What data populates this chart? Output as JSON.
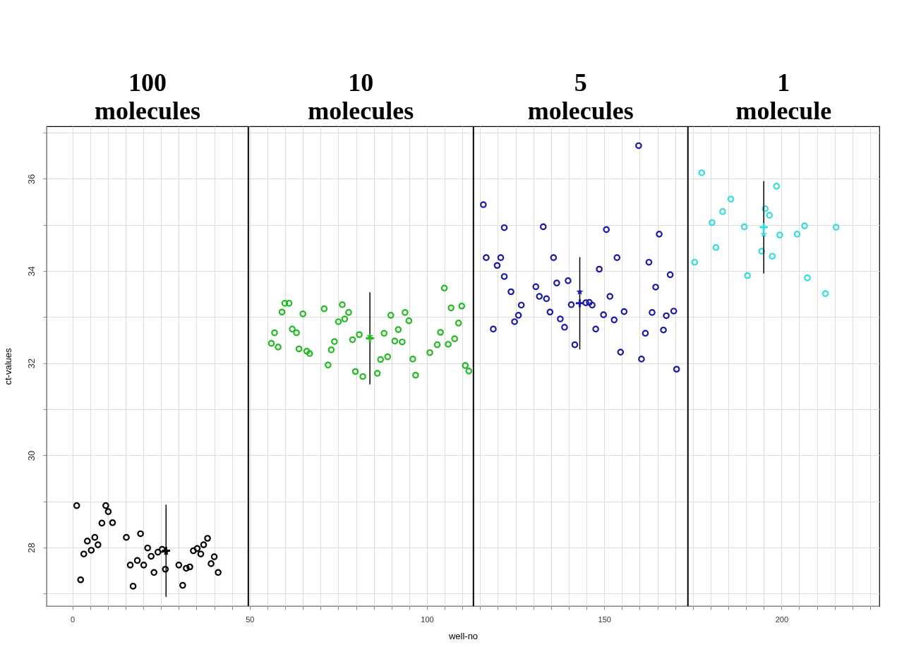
{
  "chart_data": {
    "type": "scatter",
    "xlabel": "well-no",
    "ylabel": "ct-values",
    "marker": "circle",
    "grid": true,
    "xlim": [
      -7.3,
      227.6
    ],
    "ylim": [
      26.73,
      37.14
    ],
    "xticks": [
      0,
      {
        "value": 5,
        "label": null
      },
      {
        "value": 10,
        "label": null
      },
      {
        "value": 15,
        "label": null
      },
      {
        "value": 20,
        "label": null
      },
      {
        "value": 25,
        "label": null
      },
      {
        "value": 30,
        "label": null
      },
      {
        "value": 35,
        "label": null
      },
      {
        "value": 40,
        "label": null
      },
      {
        "value": 45,
        "label": null
      },
      50,
      {
        "value": 55,
        "label": null
      },
      {
        "value": 60,
        "label": null
      },
      {
        "value": 65,
        "label": null
      },
      {
        "value": 70,
        "label": null
      },
      {
        "value": 75,
        "label": null
      },
      {
        "value": 80,
        "label": null
      },
      {
        "value": 85,
        "label": null
      },
      {
        "value": 90,
        "label": null
      },
      {
        "value": 95,
        "label": null
      },
      100,
      {
        "value": 105,
        "label": null
      },
      {
        "value": 110,
        "label": null
      },
      {
        "value": 115,
        "label": null
      },
      {
        "value": 120,
        "label": null
      },
      {
        "value": 125,
        "label": null
      },
      {
        "value": 130,
        "label": null
      },
      {
        "value": 135,
        "label": null
      },
      {
        "value": 140,
        "label": null
      },
      {
        "value": 145,
        "label": null
      },
      150,
      {
        "value": 155,
        "label": null
      },
      {
        "value": 160,
        "label": null
      },
      {
        "value": 165,
        "label": null
      },
      {
        "value": 170,
        "label": null
      },
      {
        "value": 175,
        "label": null
      },
      {
        "value": 180,
        "label": null
      },
      {
        "value": 185,
        "label": null
      },
      {
        "value": 190,
        "label": null
      },
      {
        "value": 195,
        "label": null
      },
      200,
      {
        "value": 205,
        "label": null
      },
      {
        "value": 210,
        "label": null
      },
      {
        "value": 215,
        "label": null
      },
      {
        "value": 220,
        "label": null
      },
      {
        "value": 225,
        "label": null
      }
    ],
    "yticks": [
      {
        "value": 27,
        "label": null
      },
      28,
      {
        "value": 29,
        "label": null
      },
      30,
      {
        "value": 31,
        "label": null
      },
      32,
      {
        "value": 33,
        "label": null
      },
      34,
      {
        "value": 35,
        "label": null
      },
      36,
      {
        "value": 37,
        "label": null
      }
    ],
    "annotations": [
      "100 molecules",
      "10 molecules",
      "5 molecules",
      "1 molecule"
    ],
    "ref_lines": [
      {
        "axis": "x",
        "value": 49.6,
        "color": "#000000"
      },
      {
        "axis": "x",
        "value": 113.1,
        "color": "#000000"
      },
      {
        "axis": "x",
        "value": 173.6,
        "color": "#000000"
      }
    ],
    "series": [
      {
        "color": "#000000",
        "x": [
          1.2,
          9.4,
          10.1,
          8.3,
          11.3,
          6.3,
          4.2,
          7.2,
          5.3,
          3.2,
          2.3,
          15.2,
          19.2,
          21.2,
          22.2,
          18.3,
          16.3,
          20.1,
          23.0,
          17.1,
          24.1,
          25.3,
          26.2,
          30.0,
          32.1,
          33.1,
          31.1,
          34.1,
          35.2,
          36.2,
          37.0,
          38.1,
          40.0,
          39.1,
          41.1
        ],
        "values": [
          28.91,
          28.91,
          28.78,
          28.53,
          28.54,
          28.22,
          28.14,
          28.06,
          27.94,
          27.86,
          27.3,
          28.22,
          28.3,
          27.99,
          27.81,
          27.72,
          27.62,
          27.62,
          27.46,
          27.16,
          27.9,
          27.96,
          27.53,
          27.62,
          27.55,
          27.58,
          27.18,
          27.93,
          27.98,
          27.86,
          28.06,
          28.2,
          27.8,
          27.65,
          27.46
        ]
      },
      {
        "color": "#22bb22",
        "x": [
          56.1,
          57.0,
          58.0,
          59.1,
          59.9,
          61.1,
          62.0,
          63.2,
          63.9,
          65.0,
          66.1,
          66.9,
          71.0,
          72.1,
          73.0,
          73.9,
          75.0,
          76.1,
          76.8,
          77.9,
          79.0,
          79.8,
          80.9,
          81.9,
          86.0,
          86.9,
          87.9,
          88.9,
          89.8,
          90.9,
          91.9,
          93.0,
          93.8,
          94.9,
          96.0,
          96.8,
          100.8,
          102.9,
          103.8,
          104.9,
          106.0,
          106.8,
          107.8,
          108.9,
          109.8,
          110.8,
          111.8
        ],
        "values": [
          32.43,
          32.66,
          32.35,
          33.11,
          33.3,
          33.3,
          32.74,
          32.66,
          32.31,
          33.07,
          32.26,
          32.21,
          33.18,
          31.96,
          32.29,
          32.47,
          32.9,
          33.27,
          32.96,
          33.1,
          32.51,
          31.82,
          32.62,
          31.71,
          31.78,
          32.08,
          32.65,
          32.14,
          33.04,
          32.48,
          32.73,
          32.46,
          33.1,
          32.92,
          32.09,
          31.74,
          32.23,
          32.4,
          32.67,
          33.63,
          32.41,
          33.2,
          32.53,
          32.87,
          33.24,
          31.95,
          31.83
        ]
      },
      {
        "color": "#1a1aaa",
        "x": [
          159.7,
          115.9,
          121.8,
          132.8,
          150.6,
          165.5,
          116.7,
          120.8,
          119.8,
          135.7,
          153.6,
          162.6,
          148.6,
          121.8,
          168.6,
          130.7,
          136.6,
          139.8,
          164.5,
          123.7,
          131.7,
          133.7,
          151.6,
          126.6,
          140.7,
          144.8,
          145.8,
          146.6,
          134.7,
          149.8,
          155.6,
          163.5,
          167.5,
          169.6,
          125.8,
          124.7,
          137.6,
          152.8,
          118.7,
          138.8,
          147.6,
          161.6,
          166.7,
          141.7,
          154.6,
          160.5,
          170.4
        ],
        "values": [
          36.72,
          35.44,
          34.94,
          34.96,
          34.9,
          34.8,
          34.29,
          34.29,
          34.12,
          34.29,
          34.29,
          34.19,
          34.04,
          33.88,
          33.92,
          33.66,
          33.74,
          33.79,
          33.65,
          33.55,
          33.45,
          33.4,
          33.45,
          33.26,
          33.27,
          33.31,
          33.32,
          33.26,
          33.11,
          33.05,
          33.12,
          33.1,
          33.03,
          33.13,
          33.04,
          32.9,
          32.96,
          32.94,
          32.74,
          32.78,
          32.74,
          32.65,
          32.72,
          32.4,
          32.24,
          32.09,
          31.87
        ]
      },
      {
        "color": "#33dddd",
        "x": [
          177.5,
          198.6,
          185.7,
          183.4,
          195.4,
          196.6,
          180.4,
          189.5,
          206.5,
          215.4,
          199.5,
          204.4,
          181.5,
          194.4,
          197.4,
          175.5,
          190.4,
          207.3,
          212.4
        ],
        "values": [
          36.13,
          35.84,
          35.56,
          35.29,
          35.35,
          35.21,
          35.05,
          34.96,
          34.98,
          34.95,
          34.78,
          34.8,
          34.51,
          34.43,
          34.32,
          34.19,
          33.9,
          33.85,
          33.51
        ]
      },
      {
        "marker": "cross",
        "x": [
          26.4,
          83.9,
          143.1,
          195.0
        ],
        "values": [
          27.93,
          32.54,
          33.3,
          34.95
        ],
        "colors": [
          "#000000",
          "#22bb22",
          "#1a1aaa",
          "#33dddd"
        ],
        "errors": [
          1.0,
          1.0,
          1.0,
          1.0
        ]
      },
      {
        "marker": "star",
        "x": [
          26.4,
          83.9,
          143.1,
          195.0
        ],
        "values": [
          27.9,
          32.58,
          33.55,
          34.8
        ],
        "colors": [
          "#000000",
          "#22bb22",
          "#1a1aaa",
          "#33dddd"
        ]
      }
    ]
  }
}
